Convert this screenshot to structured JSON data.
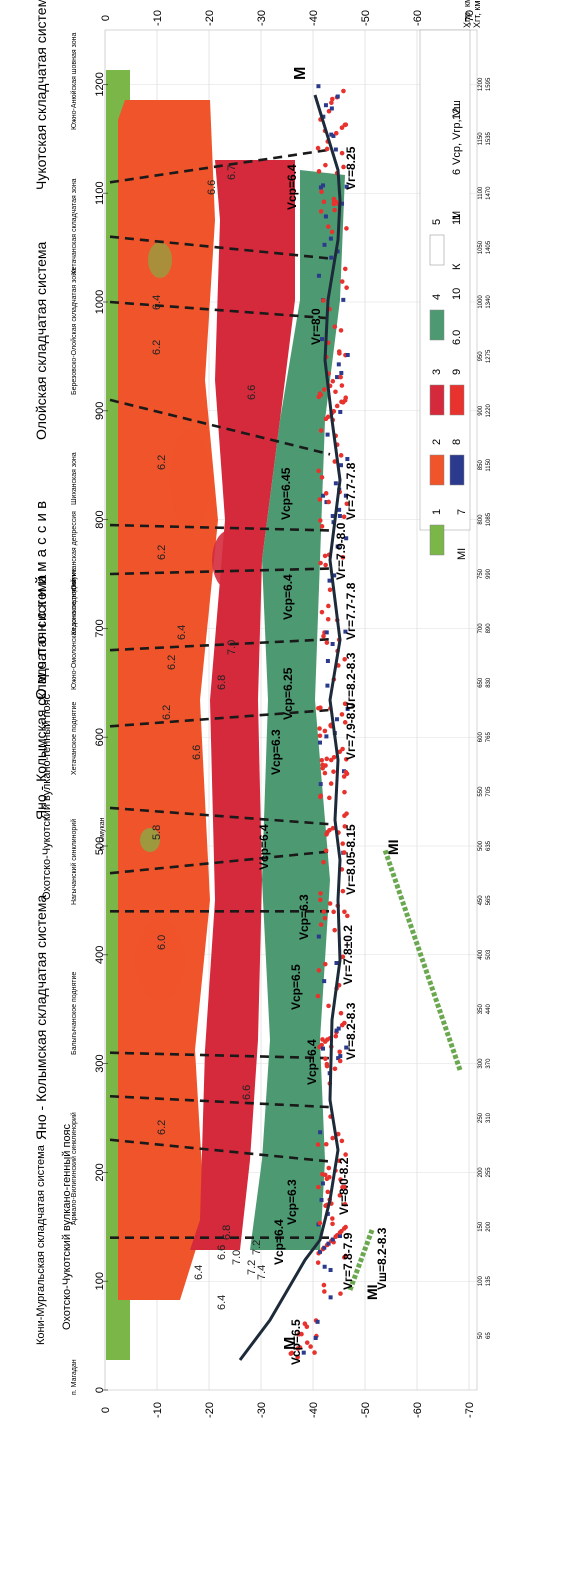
{
  "depth_axis": {
    "ticks": [
      0,
      -10,
      -20,
      -30,
      -40,
      -50,
      -60,
      -70
    ],
    "tick_labels": [
      "0",
      "-10",
      "-20",
      "-30",
      "-40",
      "-50",
      "-60",
      "-70"
    ]
  },
  "distance_axis": {
    "ticks": [
      0,
      100,
      200,
      300,
      400,
      500,
      600,
      700,
      800,
      900,
      1000,
      1100,
      1200
    ],
    "tick_labels": [
      "0",
      "100",
      "200",
      "300",
      "400",
      "500",
      "600",
      "700",
      "800",
      "900",
      "1000",
      "1100",
      "1200"
    ],
    "right_pairs": [
      [
        "50",
        "65"
      ],
      [
        "100",
        "135"
      ],
      [
        "150",
        "200"
      ],
      [
        "200",
        "255"
      ],
      [
        "250",
        "310"
      ],
      [
        "300",
        "370"
      ],
      [
        "350",
        "440"
      ],
      [
        "400",
        "503"
      ],
      [
        "450",
        "565"
      ],
      [
        "500",
        "635"
      ],
      [
        "550",
        "705"
      ],
      [
        "600",
        "765"
      ],
      [
        "650",
        "830"
      ],
      [
        "700",
        "890"
      ],
      [
        "750",
        "990"
      ],
      [
        "800",
        "1085"
      ],
      [
        "850",
        "1150"
      ],
      [
        "900",
        "1220"
      ],
      [
        "950",
        "1275"
      ],
      [
        "1000",
        "1340"
      ],
      [
        "1050",
        "1405"
      ],
      [
        "1100",
        "1470"
      ],
      [
        "1150",
        "1535"
      ],
      [
        "1200",
        "1595"
      ]
    ],
    "caption_top": "Хпр, км",
    "caption_bottom": "Хгт, км"
  },
  "regions": [
    {
      "label": "Кони-Мургальская система",
      "text": "Кони-Мургальская складчатая система"
    },
    {
      "label": "Охотско-Чукотский вулканогенный пояс",
      "text": "Охотско-Чукотский вулкано-генный пояс"
    },
    {
      "label": "Яно-Колымская складчатая система",
      "text": "Яно - Колымская складчатая система"
    },
    {
      "label": "Охотско-Чукотский вулканогенный пояс 2",
      "text": "Охотско-Чукотский вулкано-генный пояс"
    },
    {
      "label": "Яно-Колымская складчатая система 2",
      "text": "Яно - Колымская складчатая система"
    },
    {
      "label": "Омолонский массив",
      "text": "О м о л о н с к и й   м а с с и в"
    },
    {
      "label": "Олойская складчатая система",
      "text": "Олойская складчатая система"
    },
    {
      "label": "Чукотская складчатая система",
      "text": "Чукотская складчатая система"
    }
  ],
  "structures": [
    "п. Магадан",
    "Армало-Вилигинский синклинорий",
    "Балыгычанское поднятие",
    "Нагычанский синклинорий",
    "п. Омукан",
    "Хетачанское поднятие",
    "Южно-Омолонская зона поднятий",
    "Кедонское поднятие",
    "Омукчанская депрессия",
    "Шиханская зона",
    "Березовско-Олойская складчатая зона",
    "Хетачанская складчатая зона",
    "Южно-Анюйская шовная зона"
  ],
  "velocity_labels": [
    "Vср=6.5",
    "Vср=6.4",
    "Vср=6.3",
    "Vср=6.4",
    "Vср=6.5",
    "Vср=6.3",
    "Vср=6.4",
    "Vср=6.25",
    "Vср=6.3",
    "Vср=6.4",
    "Vср=6.45",
    "Vср=6.4",
    "Vг=7.8-7.9",
    "Vг=8.0-8.2",
    "Vг=8.2-8.3",
    "Vг=7.8±0.2",
    "Vг=8.05-8.15",
    "Vг=7.9-8.0",
    "Vг=8.2-8.3",
    "Vг=7.7-7.8",
    "Vг=7.9-8.0",
    "Vг=7.7-7.8",
    "Vг=8.0",
    "Vг=8.25",
    "Vш=8.2-8.3"
  ],
  "contour_labels": [
    "6.4",
    "6.6",
    "6.8",
    "7.0",
    "7.2",
    "7.4",
    "7.2",
    "6.6",
    "6.4",
    "6.2",
    "6.0",
    "5.8",
    "6.6",
    "6.2",
    "6.8",
    "7.0",
    "6.2",
    "6.4",
    "6.2",
    "6.2",
    "6.6",
    "6.2",
    "6.4",
    "6.6",
    "6.7"
  ],
  "boundary_labels": {
    "M_left": "M",
    "M_right": "M",
    "MI_left": "MI",
    "MI_mid": "MI"
  },
  "legend": {
    "items": [
      {
        "num": "1",
        "color": "#7ab648"
      },
      {
        "num": "2",
        "color": "#f0542a"
      },
      {
        "num": "3",
        "color": "#d42a3c"
      },
      {
        "num": "4",
        "color": "#4d9a72"
      },
      {
        "num": "5",
        "color": "#ffffff"
      },
      {
        "num": "6",
        "text": "M"
      },
      {
        "num": "7",
        "text": "MI"
      },
      {
        "num": "8",
        "color": "#2b3a8c"
      },
      {
        "num": "9",
        "color": "#e8322e"
      },
      {
        "num": "10",
        "text": "6.0"
      },
      {
        "num": "11",
        "text": "К"
      },
      {
        "num": "12",
        "text": "Vср, Vгр, Vш"
      }
    ],
    "colors": {
      "green_light": "#7ab648",
      "orange": "#f0542a",
      "red": "#d42a3c",
      "teal": "#4d9a72",
      "navy": "#2b3a8c",
      "dotred": "#e8322e",
      "boundary": "#1d2a3a"
    }
  }
}
